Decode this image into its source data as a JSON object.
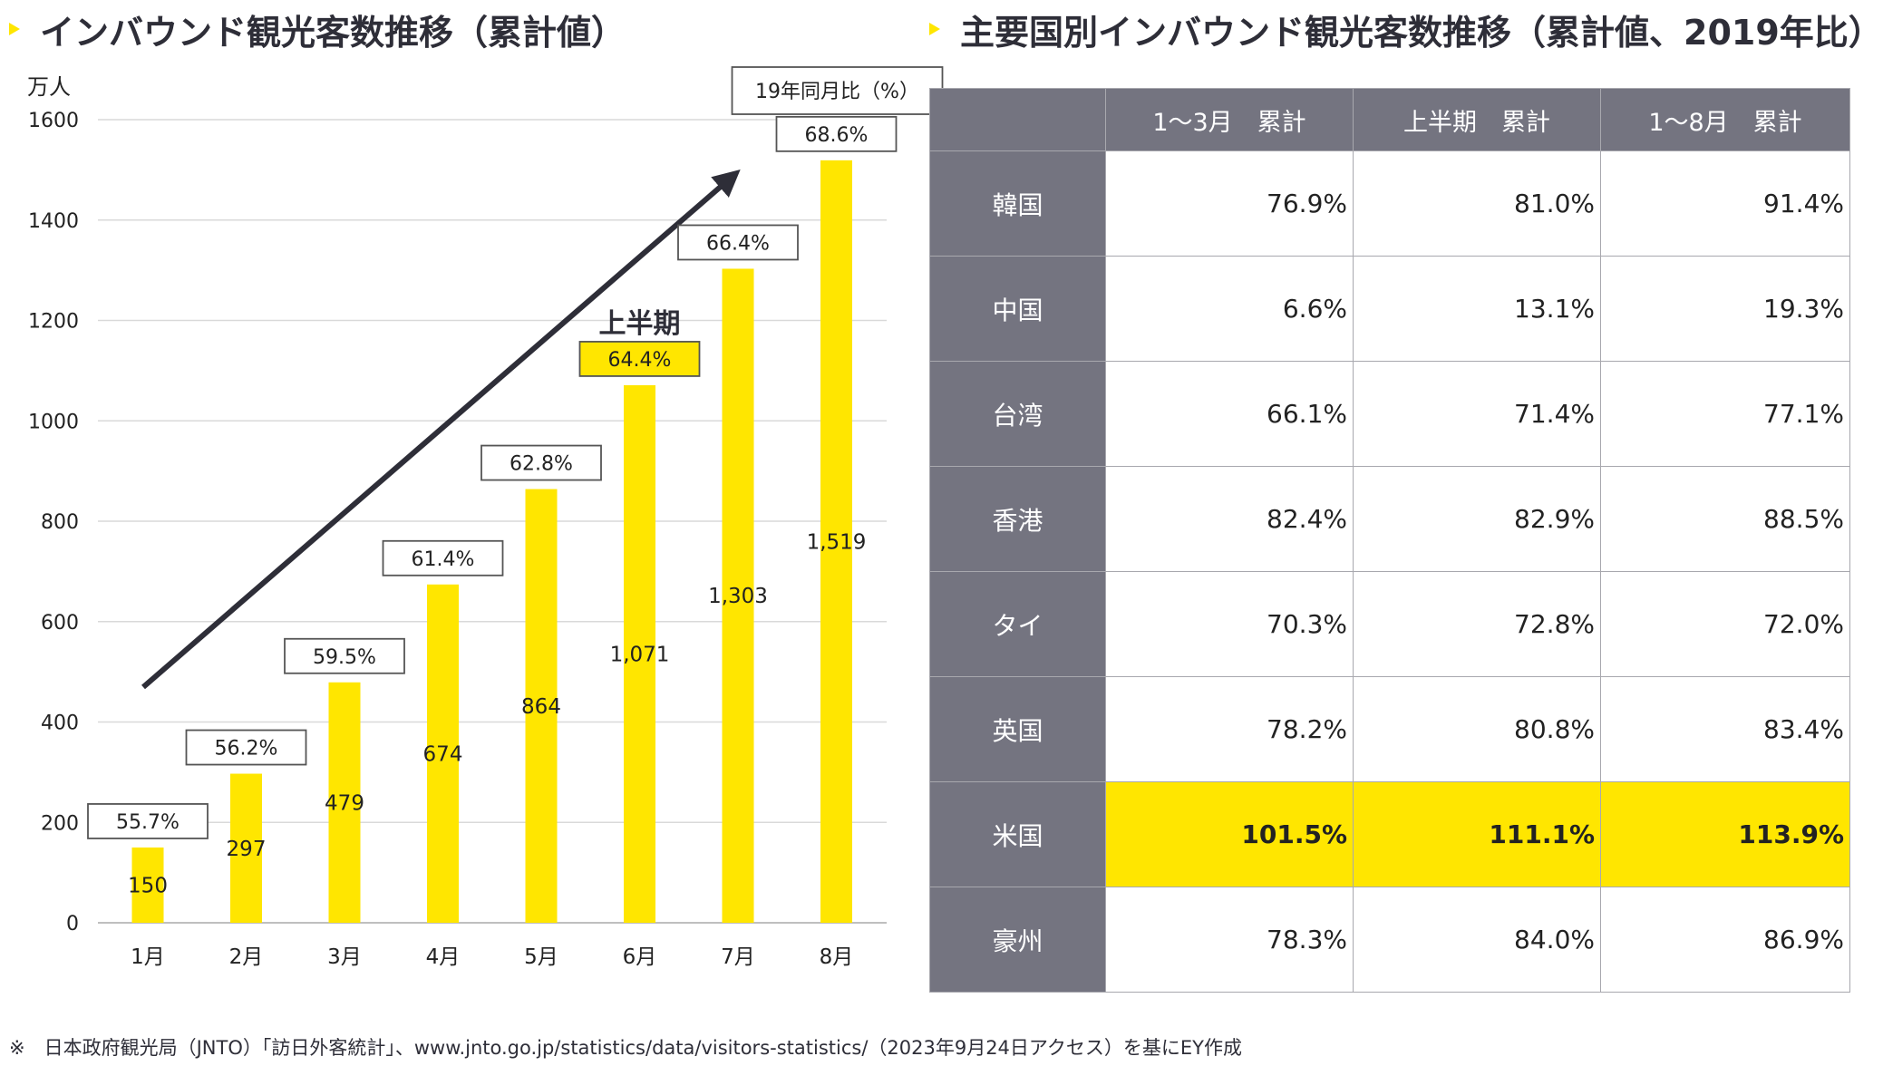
{
  "left_title": "インバウンド観光客数推移（累計値）",
  "right_title": "主要国別インバウンド観光客数推移（累計値、2019年比）",
  "chart_data": {
    "type": "bar",
    "y_unit": "万人",
    "categories": [
      "1月",
      "2月",
      "3月",
      "4月",
      "5月",
      "6月",
      "7月",
      "8月"
    ],
    "values": [
      150,
      297,
      479,
      674,
      864,
      1071,
      1303,
      1519
    ],
    "value_labels": [
      "150",
      "297",
      "479",
      "674",
      "864",
      "1,071",
      "1,303",
      "1,519"
    ],
    "pct_2019": [
      "55.7%",
      "56.2%",
      "59.5%",
      "61.4%",
      "62.8%",
      "64.4%",
      "66.4%",
      "68.6%"
    ],
    "pct_header": "19年同月比（%）",
    "annotation": "上半期",
    "highlight_index": 5,
    "ylim": [
      0,
      1600
    ],
    "yticks": [
      0,
      200,
      400,
      600,
      800,
      1000,
      1200,
      1400,
      1600
    ],
    "bar_color": "#FFE600",
    "grid": true
  },
  "table": {
    "headers": [
      "1〜3月　累計",
      "上半期　累計",
      "1〜8月　累計"
    ],
    "rows": [
      {
        "country": "韓国",
        "values": [
          "76.9%",
          "81.0%",
          "91.4%"
        ]
      },
      {
        "country": "中国",
        "values": [
          "6.6%",
          "13.1%",
          "19.3%"
        ]
      },
      {
        "country": "台湾",
        "values": [
          "66.1%",
          "71.4%",
          "77.1%"
        ]
      },
      {
        "country": "香港",
        "values": [
          "82.4%",
          "82.9%",
          "88.5%"
        ]
      },
      {
        "country": "タイ",
        "values": [
          "70.3%",
          "72.8%",
          "72.0%"
        ]
      },
      {
        "country": "英国",
        "values": [
          "78.2%",
          "80.8%",
          "83.4%"
        ]
      },
      {
        "country": "米国",
        "values": [
          "101.5%",
          "111.1%",
          "113.9%"
        ],
        "highlight": true
      },
      {
        "country": "豪州",
        "values": [
          "78.3%",
          "84.0%",
          "86.9%"
        ]
      }
    ]
  },
  "footnote": "※　日本政府観光局（JNTO）「訪日外客統計」、www.jnto.go.jp/statistics/data/visitors-statistics/（2023年9月24日アクセス）を基にEY作成",
  "colors": {
    "accent": "#FFE600",
    "header_gray": "#747480",
    "text_dark": "#2E2E38"
  }
}
